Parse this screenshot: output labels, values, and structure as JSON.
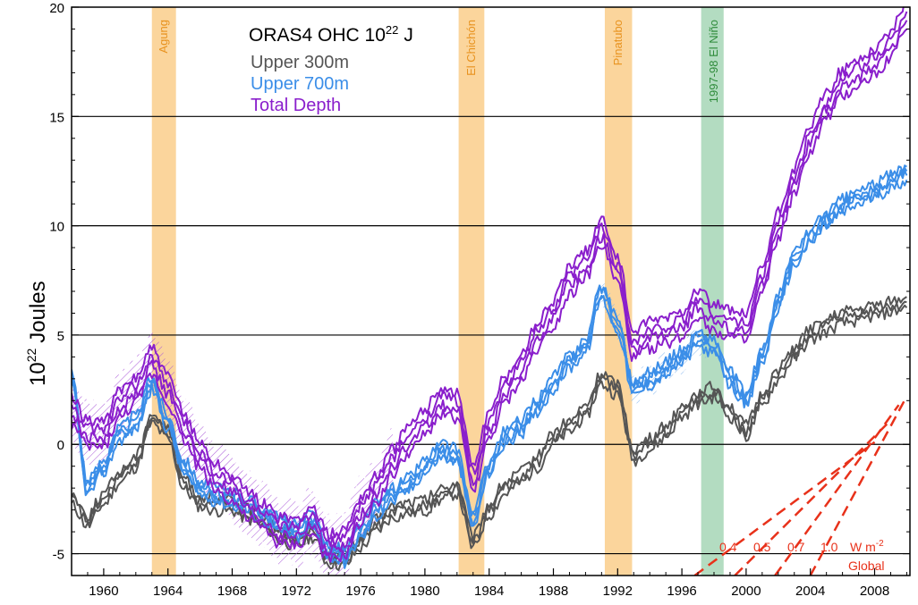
{
  "chart_data": {
    "type": "line",
    "title": "ORAS4  OHC  10",
    "title_sup": "22",
    "title_unit": "J",
    "ylabel": "10",
    "ylabel_sup": "22",
    "ylabel_unit": "Joules",
    "xlim": [
      1958,
      2010.2
    ],
    "ylim": [
      -6,
      20
    ],
    "x_ticks": [
      1960,
      1964,
      1968,
      1972,
      1976,
      1980,
      1984,
      1988,
      1992,
      1996,
      2000,
      2004,
      2008
    ],
    "y_ticks": [
      -5,
      0,
      5,
      10,
      15,
      20
    ],
    "y_tick_labels": [
      "-5",
      "0",
      "5",
      "10",
      "15",
      "20"
    ],
    "grid": "horizontal lines at -5, 0, 5, 10, 15",
    "legend_position": "top-left",
    "event_bands": [
      {
        "label": "Agung",
        "start": 1963.0,
        "end": 1964.5,
        "color": "#fbd59c",
        "text_color": "#e8921e"
      },
      {
        "label": "El Chichón",
        "start": 1982.1,
        "end": 1983.7,
        "color": "#fbd59c",
        "text_color": "#e8921e"
      },
      {
        "label": "Pinatubo",
        "start": 1991.2,
        "end": 1992.9,
        "color": "#fbd59c",
        "text_color": "#e8921e"
      },
      {
        "label": "1997-98 El Niño",
        "start": 1997.2,
        "end": 1998.6,
        "color": "#b3dcc1",
        "text_color": "#2e8b3a"
      }
    ],
    "series": [
      {
        "name": "Upper 300m",
        "color": "#555555",
        "x": [
          1958,
          1959,
          1960,
          1961,
          1962,
          1963,
          1964,
          1965,
          1966,
          1967,
          1968,
          1969,
          1970,
          1971,
          1972,
          1973,
          1974,
          1975,
          1976,
          1977,
          1978,
          1979,
          1980,
          1981,
          1982,
          1983,
          1984,
          1985,
          1986,
          1987,
          1988,
          1989,
          1990,
          1991,
          1992,
          1993,
          1994,
          1995,
          1996,
          1997,
          1998,
          1999,
          2000,
          2001,
          2002,
          2003,
          2004,
          2005,
          2006,
          2007,
          2008,
          2009,
          2010
        ],
        "values": [
          -2.5,
          -3.5,
          -2.5,
          -1.5,
          -0.8,
          1.2,
          0.5,
          -1.8,
          -2.6,
          -2.8,
          -2.8,
          -3.2,
          -3.5,
          -4.2,
          -4.4,
          -4.0,
          -5.2,
          -5.3,
          -4.5,
          -3.7,
          -3.1,
          -2.9,
          -2.8,
          -2.3,
          -2.0,
          -4.5,
          -3.0,
          -2.0,
          -1.5,
          -0.8,
          0.3,
          0.8,
          1.5,
          3.0,
          2.5,
          -0.5,
          0.0,
          0.6,
          1.5,
          2.1,
          2.4,
          1.5,
          0.6,
          2.0,
          3.2,
          4.2,
          5.0,
          5.4,
          5.8,
          5.9,
          6.1,
          6.3,
          6.5
        ],
        "members_offsets": [
          -0.25,
          0,
          0.25
        ]
      },
      {
        "name": "Upper 700m",
        "color": "#3b8ee8",
        "x": [
          1958,
          1959,
          1960,
          1961,
          1962,
          1963,
          1964,
          1965,
          1966,
          1967,
          1968,
          1969,
          1970,
          1971,
          1972,
          1973,
          1974,
          1975,
          1976,
          1977,
          1978,
          1979,
          1980,
          1981,
          1982,
          1983,
          1984,
          1985,
          1986,
          1987,
          1988,
          1989,
          1990,
          1991,
          1992,
          1993,
          1994,
          1995,
          1996,
          1997,
          1998,
          1999,
          2000,
          2001,
          2002,
          2003,
          2004,
          2005,
          2006,
          2007,
          2008,
          2009,
          2010
        ],
        "values": [
          3.0,
          -2.0,
          -1.0,
          0.5,
          1.0,
          2.8,
          1.0,
          -1.0,
          -2.0,
          -2.3,
          -2.5,
          -2.8,
          -3.2,
          -3.7,
          -4.0,
          -3.5,
          -4.8,
          -5.1,
          -4.0,
          -3.0,
          -2.3,
          -1.8,
          -1.0,
          -0.3,
          -0.5,
          -3.5,
          -1.0,
          0.3,
          0.8,
          1.8,
          2.8,
          3.8,
          4.5,
          7.0,
          5.5,
          2.5,
          3.0,
          3.5,
          4.0,
          4.8,
          4.5,
          3.0,
          2.0,
          4.0,
          6.5,
          8.5,
          9.5,
          10.3,
          10.9,
          11.3,
          11.6,
          12.0,
          12.4
        ],
        "members_offsets": [
          -0.3,
          -0.1,
          0.1,
          0.3
        ]
      },
      {
        "name": "Total Depth",
        "color": "#8a1fcc",
        "x": [
          1958,
          1959,
          1960,
          1961,
          1962,
          1963,
          1964,
          1965,
          1966,
          1967,
          1968,
          1969,
          1970,
          1971,
          1972,
          1973,
          1974,
          1975,
          1976,
          1977,
          1978,
          1979,
          1980,
          1981,
          1982,
          1983,
          1984,
          1985,
          1986,
          1987,
          1988,
          1989,
          1990,
          1991,
          1992,
          1993,
          1994,
          1995,
          1996,
          1997,
          1998,
          1999,
          2000,
          2001,
          2002,
          2003,
          2004,
          2005,
          2006,
          2007,
          2008,
          2009,
          2010
        ],
        "values": [
          1.5,
          0.5,
          0.5,
          1.8,
          2.5,
          3.8,
          2.5,
          0.8,
          -0.5,
          -1.5,
          -2.0,
          -2.8,
          -3.3,
          -4.0,
          -4.0,
          -3.5,
          -4.7,
          -4.5,
          -3.0,
          -2.0,
          -0.8,
          0.2,
          1.0,
          2.0,
          1.8,
          -1.5,
          0.8,
          2.5,
          3.5,
          5.0,
          6.0,
          7.5,
          8.2,
          9.7,
          8.0,
          4.5,
          5.0,
          5.2,
          5.5,
          6.5,
          5.8,
          5.5,
          5.3,
          7.5,
          10.0,
          12.0,
          14.0,
          15.5,
          16.5,
          17.0,
          17.5,
          18.3,
          19.6
        ],
        "members_offsets": [
          -0.6,
          -0.2,
          0.2,
          0.6
        ]
      }
    ],
    "spread_bands": [
      {
        "series": "Total Depth",
        "start": 1958,
        "end": 1978,
        "note": "hatched envelope"
      },
      {
        "series": "Upper 700m",
        "start": 1991,
        "end": 1997,
        "note": "hatched envelope"
      }
    ],
    "rate_lines": {
      "color": "#e8311a",
      "labels": [
        "0.4",
        "0.5",
        "0.7",
        "1.0"
      ],
      "unit": "W m",
      "unit_sup": "-2",
      "caption": "Global",
      "rates": [
        0.4,
        0.5,
        0.7,
        1.0
      ],
      "origin_year": 1996.5
    }
  }
}
